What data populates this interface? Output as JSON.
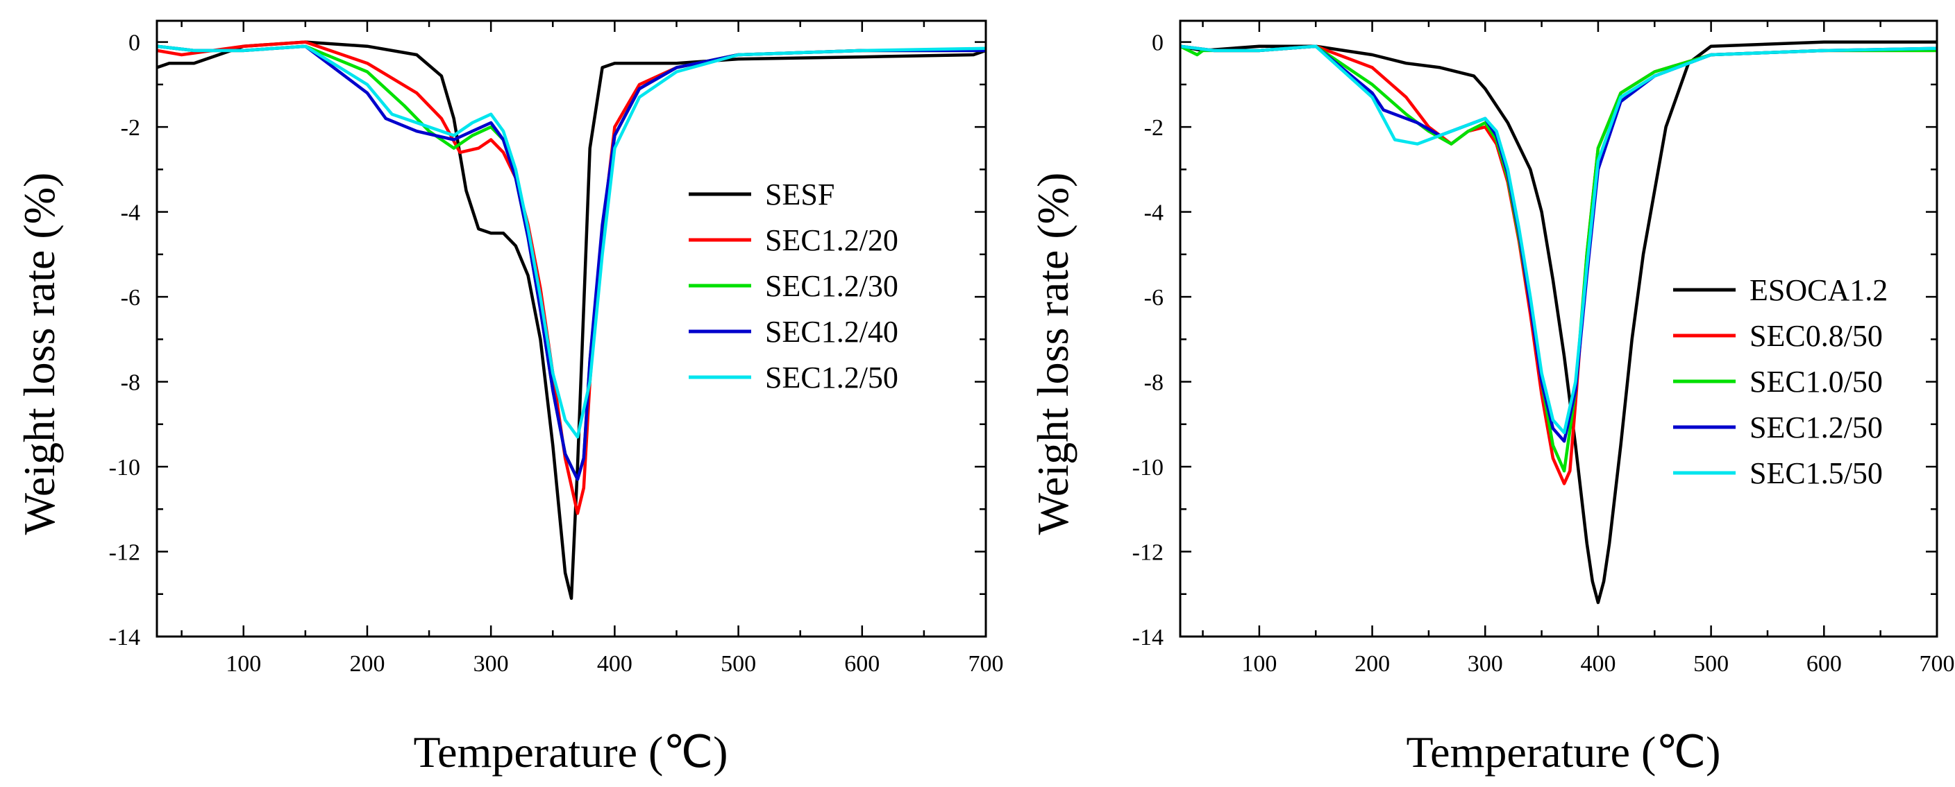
{
  "chart_data": [
    {
      "type": "line",
      "id": "left",
      "xlabel": "Temperature (℃)",
      "ylabel": "Weight loss rate (%)",
      "xlim": [
        30,
        700
      ],
      "ylim": [
        -14,
        0.5
      ],
      "xticks": [
        100,
        200,
        300,
        400,
        500,
        600,
        700
      ],
      "yticks": [
        0,
        -2,
        -4,
        -6,
        -8,
        -10,
        -12,
        -14
      ],
      "legend_position": "center-right",
      "series": [
        {
          "name": "SESF",
          "color": "#000000",
          "x": [
            30,
            40,
            60,
            100,
            150,
            200,
            240,
            260,
            270,
            280,
            290,
            300,
            310,
            320,
            330,
            340,
            350,
            360,
            365,
            370,
            380,
            390,
            400,
            450,
            500,
            600,
            690,
            700
          ],
          "y": [
            -0.6,
            -0.5,
            -0.5,
            -0.1,
            0,
            -0.1,
            -0.3,
            -0.8,
            -1.8,
            -3.5,
            -4.4,
            -4.5,
            -4.5,
            -4.8,
            -5.5,
            -7,
            -9.5,
            -12.5,
            -13.1,
            -10,
            -2.5,
            -0.6,
            -0.5,
            -0.5,
            -0.4,
            -0.35,
            -0.3,
            -0.2
          ]
        },
        {
          "name": "SEC1.2/20",
          "color": "#ff0000",
          "x": [
            30,
            50,
            100,
            150,
            200,
            240,
            260,
            275,
            290,
            300,
            310,
            320,
            330,
            340,
            350,
            360,
            370,
            375,
            380,
            390,
            400,
            420,
            450,
            500,
            600,
            700
          ],
          "y": [
            -0.2,
            -0.3,
            -0.1,
            0,
            -0.5,
            -1.2,
            -1.8,
            -2.6,
            -2.5,
            -2.3,
            -2.6,
            -3.2,
            -4.3,
            -5.8,
            -7.8,
            -9.8,
            -11.1,
            -10.5,
            -8,
            -4.5,
            -2,
            -1,
            -0.6,
            -0.3,
            -0.2,
            -0.2
          ]
        },
        {
          "name": "SEC1.2/30",
          "color": "#00e000",
          "x": [
            30,
            60,
            100,
            150,
            200,
            230,
            250,
            270,
            285,
            300,
            310,
            320,
            330,
            340,
            350,
            360,
            370,
            375,
            380,
            390,
            400,
            420,
            450,
            500,
            600,
            700
          ],
          "y": [
            -0.1,
            -0.2,
            -0.2,
            -0.1,
            -0.7,
            -1.5,
            -2.1,
            -2.5,
            -2.2,
            -2,
            -2.3,
            -3.2,
            -4.6,
            -6.3,
            -8.2,
            -9.7,
            -10.3,
            -9.8,
            -7.5,
            -4.5,
            -2.2,
            -1.1,
            -0.6,
            -0.3,
            -0.2,
            -0.2
          ]
        },
        {
          "name": "SEC1.2/40",
          "color": "#0000cc",
          "x": [
            30,
            60,
            100,
            150,
            200,
            215,
            240,
            270,
            285,
            300,
            310,
            320,
            330,
            340,
            350,
            360,
            370,
            375,
            380,
            390,
            400,
            420,
            450,
            500,
            600,
            700
          ],
          "y": [
            -0.1,
            -0.2,
            -0.2,
            -0.1,
            -1.2,
            -1.8,
            -2.1,
            -2.3,
            -2.1,
            -1.9,
            -2.3,
            -3.2,
            -4.6,
            -6.3,
            -8.2,
            -9.7,
            -10.3,
            -9.8,
            -7.5,
            -4.3,
            -2.2,
            -1.1,
            -0.6,
            -0.3,
            -0.2,
            -0.2
          ]
        },
        {
          "name": "SEC1.2/50",
          "color": "#00e5ee",
          "x": [
            30,
            60,
            100,
            150,
            200,
            220,
            250,
            270,
            285,
            300,
            310,
            320,
            330,
            340,
            350,
            360,
            370,
            380,
            390,
            400,
            420,
            450,
            500,
            600,
            700
          ],
          "y": [
            -0.1,
            -0.2,
            -0.2,
            -0.1,
            -1,
            -1.7,
            -2,
            -2.2,
            -1.9,
            -1.7,
            -2.1,
            -3,
            -4.4,
            -6,
            -7.8,
            -8.9,
            -9.3,
            -8,
            -5,
            -2.5,
            -1.3,
            -0.7,
            -0.3,
            -0.2,
            -0.15
          ]
        }
      ]
    },
    {
      "type": "line",
      "id": "right",
      "xlabel": "Temperature (℃)",
      "ylabel": "Weight loss rate (%)",
      "xlim": [
        30,
        700
      ],
      "ylim": [
        -14,
        0.5
      ],
      "xticks": [
        100,
        200,
        300,
        400,
        500,
        600,
        700
      ],
      "yticks": [
        0,
        -2,
        -4,
        -6,
        -8,
        -10,
        -12,
        -14
      ],
      "legend_position": "lower-right",
      "series": [
        {
          "name": "ESOCA1.2",
          "color": "#000000",
          "x": [
            30,
            50,
            100,
            150,
            200,
            230,
            260,
            290,
            300,
            320,
            340,
            350,
            360,
            370,
            380,
            390,
            395,
            400,
            405,
            410,
            420,
            430,
            440,
            450,
            460,
            480,
            500,
            600,
            700
          ],
          "y": [
            -0.1,
            -0.2,
            -0.1,
            -0.1,
            -0.3,
            -0.5,
            -0.6,
            -0.8,
            -1.1,
            -1.9,
            -3,
            -4,
            -5.6,
            -7.4,
            -9.5,
            -11.8,
            -12.7,
            -13.2,
            -12.7,
            -11.8,
            -9.5,
            -7,
            -5,
            -3.5,
            -2,
            -0.5,
            -0.1,
            0,
            0
          ]
        },
        {
          "name": "SEC0.8/50",
          "color": "#ff0000",
          "x": [
            30,
            60,
            100,
            150,
            200,
            230,
            250,
            270,
            285,
            300,
            310,
            320,
            330,
            340,
            350,
            360,
            370,
            375,
            380,
            390,
            400,
            420,
            450,
            500,
            600,
            700
          ],
          "y": [
            -0.1,
            -0.2,
            -0.2,
            -0.1,
            -0.6,
            -1.3,
            -2,
            -2.4,
            -2.1,
            -2,
            -2.4,
            -3.3,
            -4.7,
            -6.4,
            -8.3,
            -9.8,
            -10.4,
            -10.1,
            -8.5,
            -5,
            -2.5,
            -1.2,
            -0.7,
            -0.3,
            -0.2,
            -0.2
          ]
        },
        {
          "name": "SEC1.0/50",
          "color": "#00e000",
          "x": [
            30,
            45,
            50,
            60,
            100,
            150,
            200,
            230,
            250,
            270,
            285,
            300,
            310,
            320,
            330,
            340,
            350,
            360,
            370,
            380,
            390,
            400,
            420,
            450,
            500,
            600,
            700
          ],
          "y": [
            -0.1,
            -0.3,
            -0.2,
            -0.2,
            -0.2,
            -0.1,
            -1,
            -1.7,
            -2.1,
            -2.4,
            -2.1,
            -1.9,
            -2.3,
            -3.2,
            -4.6,
            -6.2,
            -8,
            -9.5,
            -10.1,
            -8.2,
            -5,
            -2.5,
            -1.2,
            -0.7,
            -0.3,
            -0.2,
            -0.2
          ]
        },
        {
          "name": "SEC1.2/50",
          "color": "#0000cc",
          "x": [
            30,
            60,
            100,
            150,
            200,
            210,
            240,
            260,
            280,
            300,
            310,
            320,
            330,
            340,
            350,
            360,
            370,
            380,
            390,
            400,
            420,
            450,
            500,
            600,
            700
          ],
          "y": [
            -0.1,
            -0.2,
            -0.2,
            -0.1,
            -1.2,
            -1.6,
            -1.9,
            -2.2,
            -2,
            -1.8,
            -2.2,
            -3.1,
            -4.5,
            -6.2,
            -8,
            -9.1,
            -9.4,
            -8.2,
            -5.5,
            -3,
            -1.4,
            -0.8,
            -0.3,
            -0.2,
            -0.15
          ]
        },
        {
          "name": "SEC1.5/50",
          "color": "#00e5ee",
          "x": [
            30,
            60,
            100,
            150,
            200,
            220,
            240,
            260,
            280,
            300,
            310,
            320,
            330,
            340,
            350,
            360,
            370,
            380,
            390,
            400,
            420,
            450,
            500,
            600,
            700
          ],
          "y": [
            -0.1,
            -0.2,
            -0.2,
            -0.1,
            -1.3,
            -2.3,
            -2.4,
            -2.2,
            -2,
            -1.8,
            -2.1,
            -3,
            -4.4,
            -6,
            -7.8,
            -8.9,
            -9.2,
            -8,
            -5.3,
            -2.8,
            -1.3,
            -0.8,
            -0.3,
            -0.2,
            -0.15
          ]
        }
      ]
    }
  ]
}
